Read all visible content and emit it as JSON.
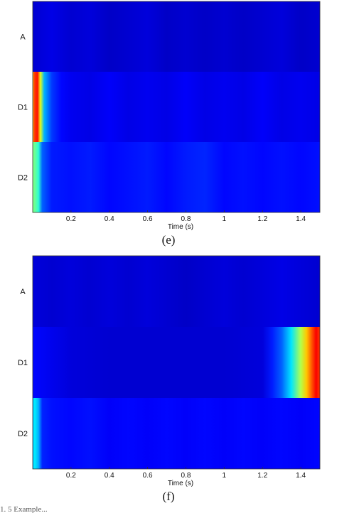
{
  "chart_data": [
    {
      "type": "heatmap",
      "panel_label": "(e)",
      "xlabel": "Time (s)",
      "xlim": [
        0,
        1.5
      ],
      "xticks": [
        "0.2",
        "0.4",
        "0.6",
        "0.8",
        "1",
        "1.2",
        "1.4"
      ],
      "rows": [
        "A",
        "D1",
        "D2"
      ],
      "colormap": "jet",
      "bands": {
        "A": [
          [
            0.0,
            0.08
          ],
          [
            0.1,
            0.1
          ],
          [
            0.2,
            0.08
          ],
          [
            0.3,
            0.09
          ],
          [
            0.4,
            0.07
          ],
          [
            0.5,
            0.08
          ],
          [
            0.6,
            0.09
          ],
          [
            0.7,
            0.07
          ],
          [
            0.8,
            0.08
          ],
          [
            0.9,
            0.07
          ],
          [
            1.0,
            0.08
          ],
          [
            1.1,
            0.07
          ],
          [
            1.2,
            0.08
          ],
          [
            1.3,
            0.09
          ],
          [
            1.4,
            0.07
          ],
          [
            1.5,
            0.08
          ]
        ],
        "D1": [
          [
            0.0,
            0.7
          ],
          [
            0.01,
            0.82
          ],
          [
            0.025,
            0.86
          ],
          [
            0.04,
            0.6
          ],
          [
            0.06,
            0.3
          ],
          [
            0.1,
            0.18
          ],
          [
            0.15,
            0.13
          ],
          [
            0.2,
            0.11
          ],
          [
            0.3,
            0.1
          ],
          [
            0.4,
            0.12
          ],
          [
            0.5,
            0.1
          ],
          [
            0.6,
            0.11
          ],
          [
            0.7,
            0.1
          ],
          [
            0.8,
            0.12
          ],
          [
            0.9,
            0.1
          ],
          [
            1.0,
            0.11
          ],
          [
            1.1,
            0.1
          ],
          [
            1.2,
            0.12
          ],
          [
            1.3,
            0.1
          ],
          [
            1.4,
            0.11
          ],
          [
            1.5,
            0.1
          ]
        ],
        "D2": [
          [
            0.0,
            0.5
          ],
          [
            0.01,
            0.48
          ],
          [
            0.03,
            0.42
          ],
          [
            0.05,
            0.22
          ],
          [
            0.1,
            0.15
          ],
          [
            0.2,
            0.14
          ],
          [
            0.3,
            0.15
          ],
          [
            0.4,
            0.13
          ],
          [
            0.5,
            0.14
          ],
          [
            0.6,
            0.15
          ],
          [
            0.7,
            0.13
          ],
          [
            0.8,
            0.15
          ],
          [
            0.9,
            0.16
          ],
          [
            1.0,
            0.13
          ],
          [
            1.1,
            0.14
          ],
          [
            1.2,
            0.13
          ],
          [
            1.3,
            0.14
          ],
          [
            1.4,
            0.13
          ],
          [
            1.5,
            0.14
          ]
        ]
      }
    },
    {
      "type": "heatmap",
      "panel_label": "(f)",
      "xlabel": "Time (s)",
      "xlim": [
        0,
        1.5
      ],
      "xticks": [
        "0.2",
        "0.4",
        "0.6",
        "0.8",
        "1",
        "1.2",
        "1.4"
      ],
      "rows": [
        "A",
        "D1",
        "D2"
      ],
      "colormap": "jet",
      "bands": {
        "A": [
          [
            0.0,
            0.09
          ],
          [
            0.1,
            0.08
          ],
          [
            0.2,
            0.09
          ],
          [
            0.3,
            0.08
          ],
          [
            0.4,
            0.09
          ],
          [
            0.5,
            0.08
          ],
          [
            0.6,
            0.09
          ],
          [
            0.7,
            0.08
          ],
          [
            0.8,
            0.07
          ],
          [
            0.9,
            0.08
          ],
          [
            1.0,
            0.09
          ],
          [
            1.1,
            0.08
          ],
          [
            1.2,
            0.09
          ],
          [
            1.3,
            0.1
          ],
          [
            1.4,
            0.09
          ],
          [
            1.5,
            0.08
          ]
        ],
        "D1": [
          [
            0.0,
            0.13
          ],
          [
            0.2,
            0.09
          ],
          [
            0.4,
            0.08
          ],
          [
            0.6,
            0.08
          ],
          [
            0.8,
            0.08
          ],
          [
            1.0,
            0.08
          ],
          [
            1.2,
            0.09
          ],
          [
            1.25,
            0.15
          ],
          [
            1.3,
            0.22
          ],
          [
            1.35,
            0.35
          ],
          [
            1.4,
            0.55
          ],
          [
            1.43,
            0.68
          ],
          [
            1.46,
            0.8
          ],
          [
            1.48,
            0.88
          ],
          [
            1.5,
            0.82
          ]
        ],
        "D2": [
          [
            0.0,
            0.3
          ],
          [
            0.01,
            0.36
          ],
          [
            0.03,
            0.3
          ],
          [
            0.05,
            0.16
          ],
          [
            0.1,
            0.14
          ],
          [
            0.2,
            0.13
          ],
          [
            0.3,
            0.14
          ],
          [
            0.4,
            0.12
          ],
          [
            0.5,
            0.13
          ],
          [
            0.6,
            0.12
          ],
          [
            0.7,
            0.13
          ],
          [
            0.8,
            0.12
          ],
          [
            0.9,
            0.13
          ],
          [
            1.0,
            0.12
          ],
          [
            1.1,
            0.13
          ],
          [
            1.2,
            0.12
          ],
          [
            1.3,
            0.13
          ],
          [
            1.4,
            0.12
          ],
          [
            1.5,
            0.13
          ]
        ]
      }
    }
  ],
  "caption": "1. 5 Example..."
}
